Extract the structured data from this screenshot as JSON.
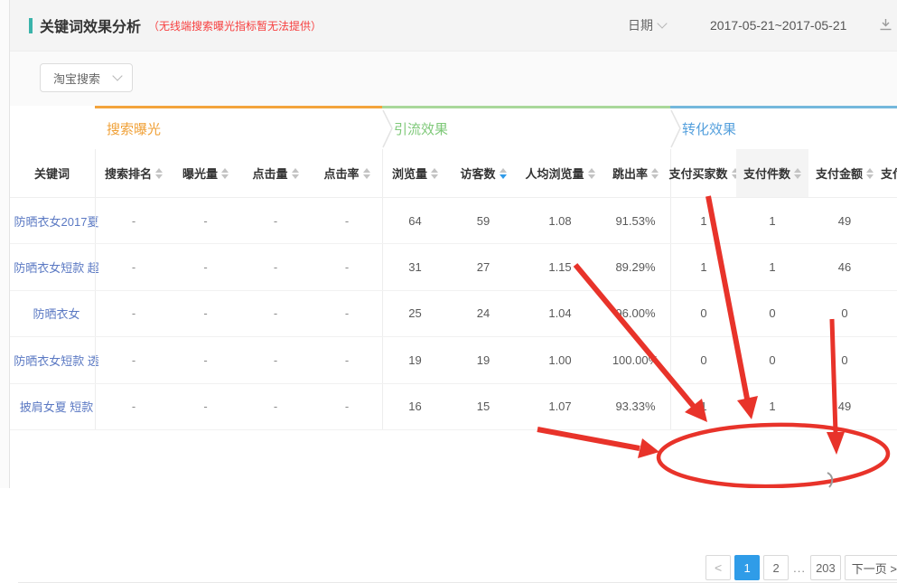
{
  "page": {
    "title": "关键词效果分析",
    "title_note": "（无线端搜索曝光指标暂无法提供）",
    "date_label": "日期",
    "date_range": "2017-05-21~2017-05-21"
  },
  "filter": {
    "search_channel": "淘宝搜索"
  },
  "table": {
    "keyword_header": "关键词",
    "groups": [
      {
        "label": "搜索曝光",
        "color": "#f3a43c"
      },
      {
        "label": "引流效果",
        "color": "#a9d89a"
      },
      {
        "label": "转化效果",
        "color": "#74b8dc"
      }
    ],
    "group_label_colors": [
      "#f0a138",
      "#7ec878",
      "#55a0dd"
    ],
    "columns": [
      "搜索排名",
      "曝光量",
      "点击量",
      "点击率",
      "浏览量",
      "访客数",
      "人均浏览量",
      "跳出率",
      "支付买家数",
      "支付件数",
      "支付金额",
      "支付"
    ],
    "sort": {
      "column": "访客数",
      "direction": "desc"
    },
    "highlight_column": "支付件数",
    "rows": [
      {
        "keyword": "防晒衣女2017夏",
        "cells": [
          "-",
          "-",
          "-",
          "-",
          "64",
          "59",
          "1.08",
          "91.53%",
          "1",
          "1",
          "49",
          ""
        ]
      },
      {
        "keyword": "防晒衣女短款 超",
        "cells": [
          "-",
          "-",
          "-",
          "-",
          "31",
          "27",
          "1.15",
          "89.29%",
          "1",
          "1",
          "46",
          ""
        ]
      },
      {
        "keyword": "防晒衣女",
        "cells": [
          "-",
          "-",
          "-",
          "-",
          "25",
          "24",
          "1.04",
          "96.00%",
          "0",
          "0",
          "0",
          ""
        ]
      },
      {
        "keyword": "防晒衣女短款 透",
        "cells": [
          "-",
          "-",
          "-",
          "-",
          "19",
          "19",
          "1.00",
          "100.00%",
          "0",
          "0",
          "0",
          ""
        ]
      },
      {
        "keyword": "披肩女夏 短款",
        "cells": [
          "-",
          "-",
          "-",
          "-",
          "16",
          "15",
          "1.07",
          "93.33%",
          "1",
          "1",
          "49",
          ""
        ]
      }
    ]
  },
  "pagination": {
    "prev": "<",
    "page_1": "1",
    "page_2": "2",
    "ellipsis": "...",
    "page_last": "203",
    "next": "下一页 >",
    "active_page": "1"
  },
  "annotation": {
    "color": "#e8332a"
  }
}
